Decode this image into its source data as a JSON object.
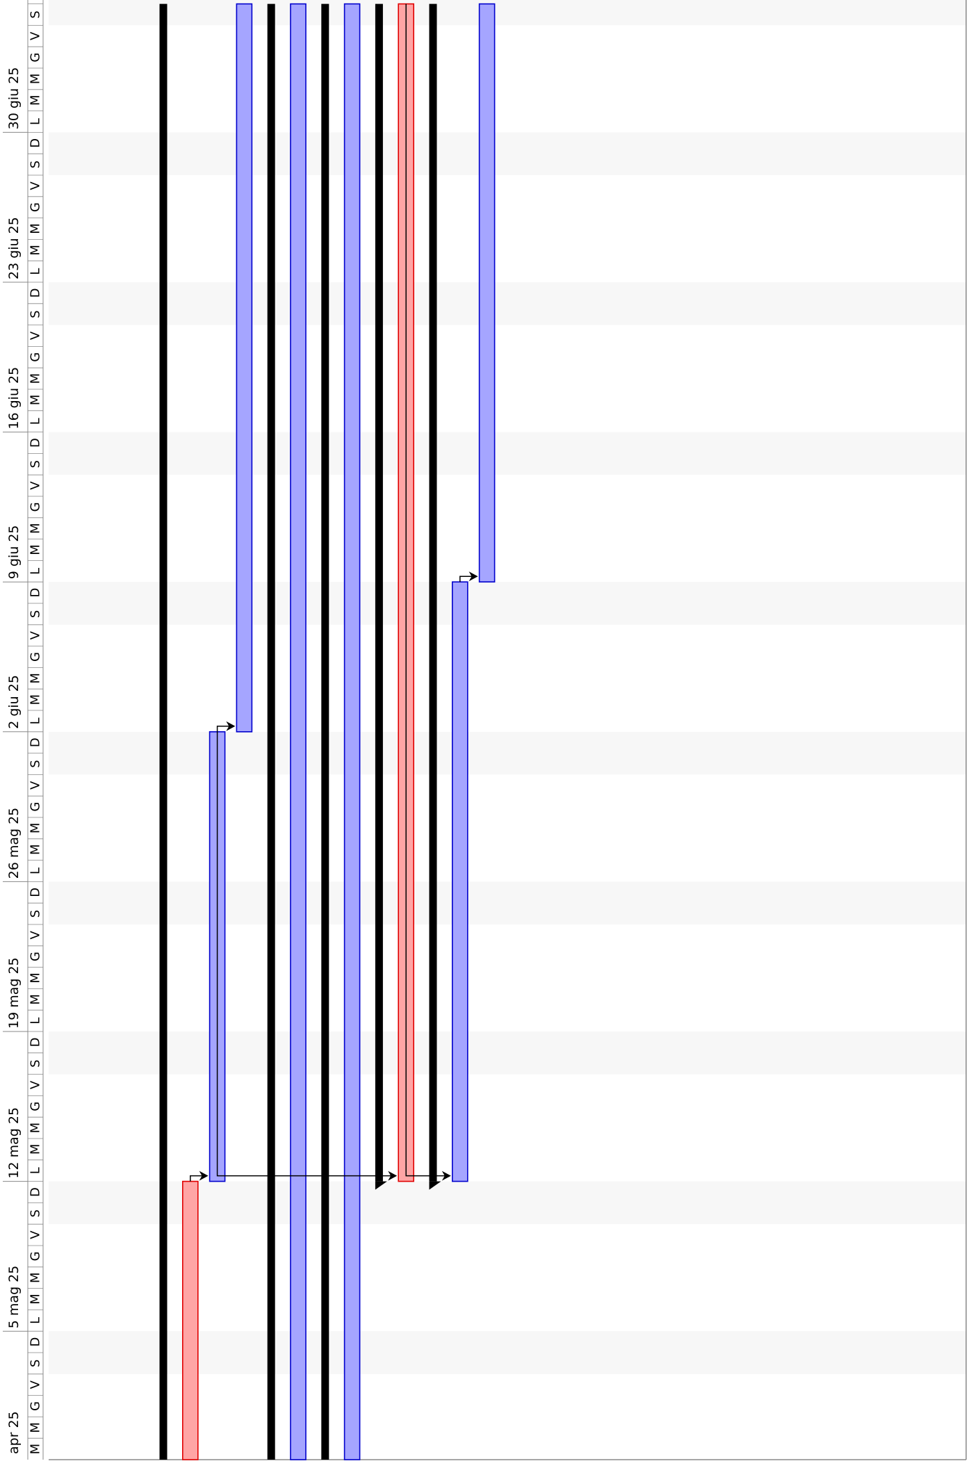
{
  "chart_data": {
    "type": "gantt",
    "orientation": "rotated 90 degrees counter-clockwise (time runs bottom to top)",
    "visible_range": [
      "2025-04-29",
      "2025-07-05"
    ],
    "week_labels": [
      "5 mag 25",
      "12 mag 25",
      "19 mag 25",
      "26 mag 25",
      "2 giu 25",
      "9 giu 25",
      "16 giu 25",
      "23 giu 25",
      "30 giu 25"
    ],
    "week_starts": [
      "2025-05-05",
      "2025-05-12",
      "2025-05-19",
      "2025-05-26",
      "2025-06-02",
      "2025-06-09",
      "2025-06-16",
      "2025-06-23",
      "2025-06-30"
    ],
    "partial_week_label": "apr 25",
    "day_letters": [
      "L",
      "M",
      "M",
      "G",
      "V",
      "S",
      "D"
    ],
    "weekend_shading": true,
    "colors": {
      "summary": "#000000",
      "task_fill": "#a5a5ff",
      "task_stroke": "#0000cc",
      "critical_fill": "#ffa5a5",
      "critical_stroke": "#e00000",
      "arrow": "#000000",
      "weekend": "#f7f7f7",
      "grid": "#888888"
    },
    "rows": [
      {
        "type": "summary",
        "start": "2025-04-29",
        "end": "2025-07-05"
      },
      {
        "type": "critical",
        "start": "2025-04-29",
        "end": "2025-05-11"
      },
      {
        "type": "task",
        "start": "2025-05-12",
        "end": "2025-06-01"
      },
      {
        "type": "task",
        "start": "2025-06-02",
        "end": "2025-07-05"
      },
      {
        "type": "summary",
        "start": "2025-04-29",
        "end": "2025-07-05"
      },
      {
        "type": "task",
        "start": "2025-04-29",
        "end": "2025-07-05"
      },
      {
        "type": "summary",
        "start": "2025-04-29",
        "end": "2025-07-05"
      },
      {
        "type": "task",
        "start": "2025-04-29",
        "end": "2025-07-05"
      },
      {
        "type": "summary",
        "start": "2025-05-12",
        "end": "2025-07-05"
      },
      {
        "type": "critical",
        "start": "2025-05-12",
        "end": "2025-07-05"
      },
      {
        "type": "summary",
        "start": "2025-05-12",
        "end": "2025-07-05"
      },
      {
        "type": "task",
        "start": "2025-05-12",
        "end": "2025-06-08"
      },
      {
        "type": "task",
        "start": "2025-06-09",
        "end": "2025-07-05"
      }
    ],
    "dependencies": [
      {
        "from": 1,
        "to": 2,
        "kind": "finish-to-start"
      },
      {
        "from": 2,
        "to": 3,
        "kind": "finish-to-start"
      },
      {
        "from": 2,
        "to": 9,
        "kind": "finish-to-start"
      },
      {
        "from": 9,
        "to": 11,
        "kind": "finish-to-start"
      },
      {
        "from": 11,
        "to": 12,
        "kind": "finish-to-start"
      }
    ]
  }
}
